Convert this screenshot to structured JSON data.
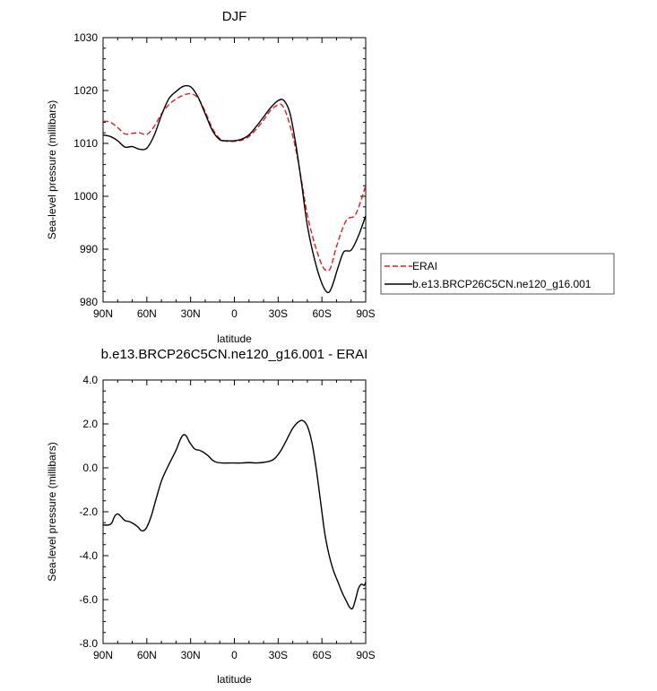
{
  "chart_data": [
    {
      "type": "line",
      "title": "DJF",
      "xlabel": "latitude",
      "ylabel": "Sea-level pressure (millibars)",
      "xlim": [
        90,
        -90
      ],
      "ylim": [
        980,
        1030
      ],
      "x_ticks": [
        {
          "value": 90,
          "label": "90N"
        },
        {
          "value": 60,
          "label": "60N"
        },
        {
          "value": 30,
          "label": "30N"
        },
        {
          "value": 0,
          "label": "0"
        },
        {
          "value": -30,
          "label": "30S"
        },
        {
          "value": -60,
          "label": "60S"
        },
        {
          "value": -90,
          "label": "90S"
        }
      ],
      "y_ticks": [
        {
          "value": 980,
          "label": "980"
        },
        {
          "value": 990,
          "label": "990"
        },
        {
          "value": 1000,
          "label": "1000"
        },
        {
          "value": 1010,
          "label": "1010"
        },
        {
          "value": 1020,
          "label": "1020"
        },
        {
          "value": 1030,
          "label": "1030"
        }
      ],
      "legend": {
        "placement": "outside-right"
      },
      "series": [
        {
          "name": "ERAI",
          "color": "#e41a1c",
          "dash": "dashed",
          "points": [
            [
              90,
              1014.2
            ],
            [
              85,
              1014.0
            ],
            [
              80,
              1013.0
            ],
            [
              75,
              1011.8
            ],
            [
              70,
              1011.9
            ],
            [
              65,
              1012.0
            ],
            [
              60,
              1011.7
            ],
            [
              55,
              1013.2
            ],
            [
              50,
              1015.6
            ],
            [
              45,
              1017.3
            ],
            [
              40,
              1018.4
            ],
            [
              35,
              1019.1
            ],
            [
              30,
              1019.4
            ],
            [
              25,
              1018.6
            ],
            [
              20,
              1016.0
            ],
            [
              15,
              1012.8
            ],
            [
              10,
              1010.9
            ],
            [
              5,
              1010.4
            ],
            [
              0,
              1010.4
            ],
            [
              -5,
              1010.6
            ],
            [
              -10,
              1011.3
            ],
            [
              -15,
              1012.7
            ],
            [
              -20,
              1014.4
            ],
            [
              -25,
              1016.3
            ],
            [
              -30,
              1017.3
            ],
            [
              -33,
              1017.1
            ],
            [
              -37,
              1014.5
            ],
            [
              -42,
              1009.0
            ],
            [
              -46,
              1003.0
            ],
            [
              -50,
              996.5
            ],
            [
              -55,
              991.0
            ],
            [
              -60,
              987.0
            ],
            [
              -63,
              986.0
            ],
            [
              -66,
              986.5
            ],
            [
              -70,
              990.5
            ],
            [
              -75,
              994.5
            ],
            [
              -78,
              995.8
            ],
            [
              -82,
              996.2
            ],
            [
              -85,
              997.8
            ],
            [
              -90,
              1002.0
            ]
          ]
        },
        {
          "name": "b.e13.BRCP26C5CN.ne120_g16.001",
          "color": "#000000",
          "dash": "solid",
          "points": [
            [
              90,
              1011.6
            ],
            [
              85,
              1011.3
            ],
            [
              80,
              1010.5
            ],
            [
              75,
              1009.3
            ],
            [
              70,
              1009.4
            ],
            [
              65,
              1008.9
            ],
            [
              60,
              1009.1
            ],
            [
              55,
              1011.5
            ],
            [
              50,
              1015.3
            ],
            [
              45,
              1018.4
            ],
            [
              40,
              1019.8
            ],
            [
              35,
              1020.8
            ],
            [
              30,
              1020.7
            ],
            [
              25,
              1018.8
            ],
            [
              20,
              1015.6
            ],
            [
              15,
              1012.4
            ],
            [
              10,
              1010.7
            ],
            [
              5,
              1010.5
            ],
            [
              0,
              1010.5
            ],
            [
              -5,
              1010.8
            ],
            [
              -10,
              1011.6
            ],
            [
              -15,
              1013.2
            ],
            [
              -20,
              1015.0
            ],
            [
              -25,
              1016.8
            ],
            [
              -30,
              1018.1
            ],
            [
              -34,
              1018.1
            ],
            [
              -38,
              1015.8
            ],
            [
              -42,
              1010.0
            ],
            [
              -46,
              1002.5
            ],
            [
              -50,
              994.5
            ],
            [
              -55,
              988.0
            ],
            [
              -60,
              983.5
            ],
            [
              -64,
              981.8
            ],
            [
              -67,
              983.0
            ],
            [
              -71,
              986.5
            ],
            [
              -75,
              989.5
            ],
            [
              -80,
              989.8
            ],
            [
              -85,
              992.5
            ],
            [
              -90,
              996.3
            ]
          ]
        }
      ]
    },
    {
      "type": "line",
      "title": "b.e13.BRCP26C5CN.ne120_g16.001 - ERAI",
      "xlabel": "latitude",
      "ylabel": "Sea-level pressure (millibars)",
      "xlim": [
        90,
        -90
      ],
      "ylim": [
        -8,
        4
      ],
      "x_ticks": [
        {
          "value": 90,
          "label": "90N"
        },
        {
          "value": 60,
          "label": "60N"
        },
        {
          "value": 30,
          "label": "30N"
        },
        {
          "value": 0,
          "label": "0"
        },
        {
          "value": -30,
          "label": "30S"
        },
        {
          "value": -60,
          "label": "60S"
        },
        {
          "value": -90,
          "label": "90S"
        }
      ],
      "y_ticks": [
        {
          "value": -8,
          "label": "-8.0"
        },
        {
          "value": -6,
          "label": "-6.0"
        },
        {
          "value": -4,
          "label": "-4.0"
        },
        {
          "value": -2,
          "label": "-2.0"
        },
        {
          "value": 0,
          "label": "0.0"
        },
        {
          "value": 2,
          "label": "2.0"
        },
        {
          "value": 4,
          "label": "4.0"
        }
      ],
      "series": [
        {
          "name": "",
          "color": "#000000",
          "dash": "solid",
          "points": [
            [
              90,
              -2.6
            ],
            [
              86,
              -2.6
            ],
            [
              84,
              -2.5
            ],
            [
              82,
              -2.2
            ],
            [
              80,
              -2.1
            ],
            [
              78,
              -2.2
            ],
            [
              75,
              -2.4
            ],
            [
              72,
              -2.45
            ],
            [
              69,
              -2.55
            ],
            [
              66,
              -2.7
            ],
            [
              64,
              -2.85
            ],
            [
              62,
              -2.85
            ],
            [
              60,
              -2.7
            ],
            [
              57,
              -2.2
            ],
            [
              54,
              -1.5
            ],
            [
              50,
              -0.6
            ],
            [
              46,
              0.0
            ],
            [
              43,
              0.4
            ],
            [
              40,
              0.8
            ],
            [
              37,
              1.3
            ],
            [
              35,
              1.5
            ],
            [
              33,
              1.45
            ],
            [
              31,
              1.2
            ],
            [
              29,
              1.0
            ],
            [
              27,
              0.85
            ],
            [
              24,
              0.8
            ],
            [
              21,
              0.7
            ],
            [
              18,
              0.55
            ],
            [
              15,
              0.35
            ],
            [
              12,
              0.25
            ],
            [
              8,
              0.22
            ],
            [
              4,
              0.22
            ],
            [
              0,
              0.22
            ],
            [
              -5,
              0.22
            ],
            [
              -10,
              0.24
            ],
            [
              -15,
              0.22
            ],
            [
              -20,
              0.25
            ],
            [
              -25,
              0.32
            ],
            [
              -28,
              0.45
            ],
            [
              -32,
              0.8
            ],
            [
              -36,
              1.3
            ],
            [
              -40,
              1.8
            ],
            [
              -44,
              2.1
            ],
            [
              -47,
              2.15
            ],
            [
              -50,
              1.9
            ],
            [
              -53,
              1.2
            ],
            [
              -56,
              0.0
            ],
            [
              -59,
              -1.5
            ],
            [
              -62,
              -3.0
            ],
            [
              -65,
              -4.0
            ],
            [
              -68,
              -4.7
            ],
            [
              -71,
              -5.2
            ],
            [
              -74,
              -5.7
            ],
            [
              -77,
              -6.1
            ],
            [
              -79,
              -6.35
            ],
            [
              -81,
              -6.4
            ],
            [
              -83,
              -6.0
            ],
            [
              -85,
              -5.5
            ],
            [
              -87,
              -5.3
            ],
            [
              -89,
              -5.35
            ],
            [
              -90,
              -5.2
            ]
          ]
        }
      ]
    }
  ]
}
